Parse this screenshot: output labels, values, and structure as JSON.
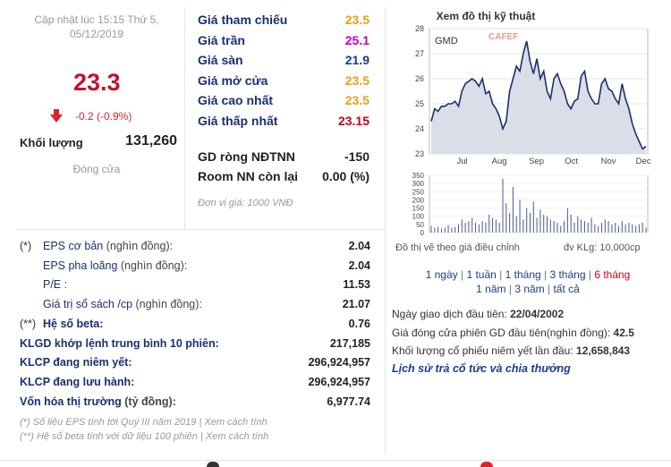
{
  "quote": {
    "updated_label": "Cập nhật lúc 15:15 Thứ 5,",
    "updated_date": "05/12/2019",
    "price": "23.3",
    "change": "-0.2 (-0.9%)",
    "volume_label": "Khối lượng",
    "volume_value": "131,260",
    "status": "Đóng cửa"
  },
  "prices": [
    {
      "label": "Giá tham chiếu",
      "value": "23.5",
      "color": "#f39c12"
    },
    {
      "label": "Giá trần",
      "value": "25.1",
      "color": "#c000c0"
    },
    {
      "label": "Giá sàn",
      "value": "21.9",
      "color": "#1a3e8a"
    },
    {
      "label": "Giá mở cửa",
      "value": "23.5",
      "color": "#f39c12"
    },
    {
      "label": "Giá cao nhất",
      "value": "23.5",
      "color": "#f39c12"
    },
    {
      "label": "Giá thấp nhất",
      "value": "23.15",
      "color": "#c0001a"
    }
  ],
  "foreign": [
    {
      "label": "GD ròng NĐTNN",
      "value": "-150"
    },
    {
      "label": "Room NN còn lại",
      "value": "0.00 (%)"
    }
  ],
  "unit_note": "Đơn vị giá: 1000 VNĐ",
  "fin": [
    {
      "prefix": "(*)",
      "label": "EPS cơ bản",
      "sub": " (nghìn đồng):",
      "value": "2.04",
      "bold": false
    },
    {
      "prefix": "",
      "label": "EPS pha loãng",
      "sub": " (nghìn đồng):",
      "value": "2.04",
      "bold": false
    },
    {
      "prefix": "",
      "label": "P/E",
      "sub": " :",
      "value": "11.53",
      "bold": false
    },
    {
      "prefix": "",
      "label": "Giá trị sổ sách /cp",
      "sub": " (nghìn đồng):",
      "value": "21.07",
      "bold": false
    },
    {
      "prefix": "(**)",
      "label": "Hệ số beta:",
      "sub": "",
      "value": "0.76",
      "bold": true
    },
    {
      "prefix": "",
      "label": "KLGD khớp lệnh trung bình 10 phiên:",
      "sub": "",
      "value": "217,185",
      "bold": true
    },
    {
      "prefix": "",
      "label": "KLCP đang niêm yết:",
      "sub": "",
      "value": "296,924,957",
      "bold": true
    },
    {
      "prefix": "",
      "label": "KLCP đang lưu hành:",
      "sub": "",
      "value": "296,924,957",
      "bold": true
    },
    {
      "prefix": "",
      "label": "Vốn hóa thị trường",
      "sub": " (tỷ đồng):",
      "value": "6,977.74",
      "bold": true
    }
  ],
  "notes": [
    "(*) Số liệu EPS tính tới Quý III năm 2019 | Xem cách tính",
    "(**) Hệ số beta tính với dữ liệu 100 phiên | Xem cách tính"
  ],
  "chart": {
    "title": "Xem đồ thị kỹ thuật",
    "symbol": "GMD",
    "watermark": "CAFEF",
    "y_ticks": [
      "28",
      "27",
      "26",
      "25",
      "24",
      "23"
    ],
    "x_ticks": [
      "Jul",
      "Aug",
      "Sep",
      "Oct",
      "Nov",
      "Dec"
    ],
    "vol_ticks": [
      "350",
      "300",
      "250",
      "200",
      "150",
      "100",
      "50",
      "0"
    ],
    "footer_left": "Đồ thị vẽ theo giá điều chỉnh",
    "footer_right": "đv KLg: 10,000cp",
    "prices": [
      24.3,
      24.8,
      24.7,
      24.9,
      24.9,
      25.0,
      25.0,
      25.1,
      24.9,
      25.5,
      25.8,
      25.9,
      26.0,
      25.9,
      25.7,
      26.0,
      25.4,
      25.5,
      25.0,
      24.8,
      24.5,
      24.0,
      24.3,
      25.5,
      26.0,
      26.5,
      26.3,
      27.0,
      27.5,
      26.7,
      26.2,
      26.8,
      26.0,
      26.3,
      25.5,
      25.2,
      26.0,
      26.2,
      25.8,
      25.5,
      25.0,
      24.8,
      25.1,
      25.2,
      26.1,
      26.3,
      25.5,
      25.2,
      25.0,
      25.0,
      25.8,
      26.0,
      25.6,
      25.5,
      25.2,
      25.0,
      25.8,
      25.2,
      24.8,
      24.2,
      23.8,
      23.5,
      23.2,
      23.3
    ],
    "volumes": [
      40,
      30,
      35,
      25,
      30,
      45,
      30,
      35,
      50,
      80,
      60,
      70,
      90,
      60,
      50,
      70,
      60,
      110,
      90,
      80,
      60,
      330,
      180,
      120,
      280,
      100,
      200,
      80,
      150,
      120,
      190,
      90,
      140,
      110,
      100,
      80,
      70,
      60,
      40,
      70,
      150,
      110,
      60,
      100,
      80,
      70,
      60,
      90,
      50,
      40,
      60,
      80,
      70,
      50,
      60,
      40,
      70,
      50,
      60,
      50,
      40,
      50,
      60,
      30
    ]
  },
  "periods": [
    {
      "label": "1 ngày",
      "active": false
    },
    {
      "label": "1 tuần",
      "active": false
    },
    {
      "label": "1 tháng",
      "active": false
    },
    {
      "label": "3 tháng",
      "active": false
    },
    {
      "label": "6 tháng",
      "active": true
    },
    {
      "label": "1 năm",
      "active": false
    },
    {
      "label": "3 năm",
      "active": false
    },
    {
      "label": "tất cả",
      "active": false
    }
  ],
  "listing": [
    {
      "label": "Ngày giao dịch đầu tiên: ",
      "value": "22/04/2002"
    },
    {
      "label": "Giá đóng cửa phiên GD đầu tiên(nghìn đồng): ",
      "value": "42.5"
    },
    {
      "label": "Khối lượng cổ phiếu niêm yết lần đầu: ",
      "value": "12,658,843"
    }
  ],
  "dividend_link": "Lịch sử trả cổ tức và chia thưởng"
}
